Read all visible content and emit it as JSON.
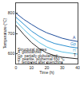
{
  "chart_data": {
    "type": "line",
    "x_label": "Time (h)",
    "y_label": "Temperature (°C)",
    "x": [
      0,
      5,
      10,
      15,
      20,
      25,
      30,
      35,
      40
    ],
    "series": [
      {
        "name": "A",
        "color": "#1f4e9c",
        "values": [
          800,
          770,
          745,
          722,
          703,
          688,
          676,
          667,
          660
        ]
      },
      {
        "name": "Gp",
        "color": "#2a8fd0",
        "values": [
          780,
          745,
          712,
          686,
          665,
          650,
          640,
          633,
          628
        ]
      },
      {
        "name": "H",
        "color": "#5fc3e6",
        "values": [
          760,
          720,
          685,
          655,
          633,
          618,
          608,
          601,
          597
        ]
      },
      {
        "name": "T",
        "color": "#2b2b2b",
        "values": [
          740,
          695,
          655,
          625,
          603,
          590,
          582,
          577,
          574
        ]
      }
    ],
    "xlim": [
      0,
      40
    ],
    "xticks": [
      0,
      10,
      20,
      30,
      40
    ],
    "ylim": [
      550,
      850
    ],
    "yticks": [
      600,
      700,
      800
    ],
    "grid": false,
    "annotations": [
      "Structural states",
      "A  globularized",
      "Gp  partially globularized",
      "H  pearlite, isothermal 650 °C",
      "T  tempered after quenching"
    ]
  }
}
